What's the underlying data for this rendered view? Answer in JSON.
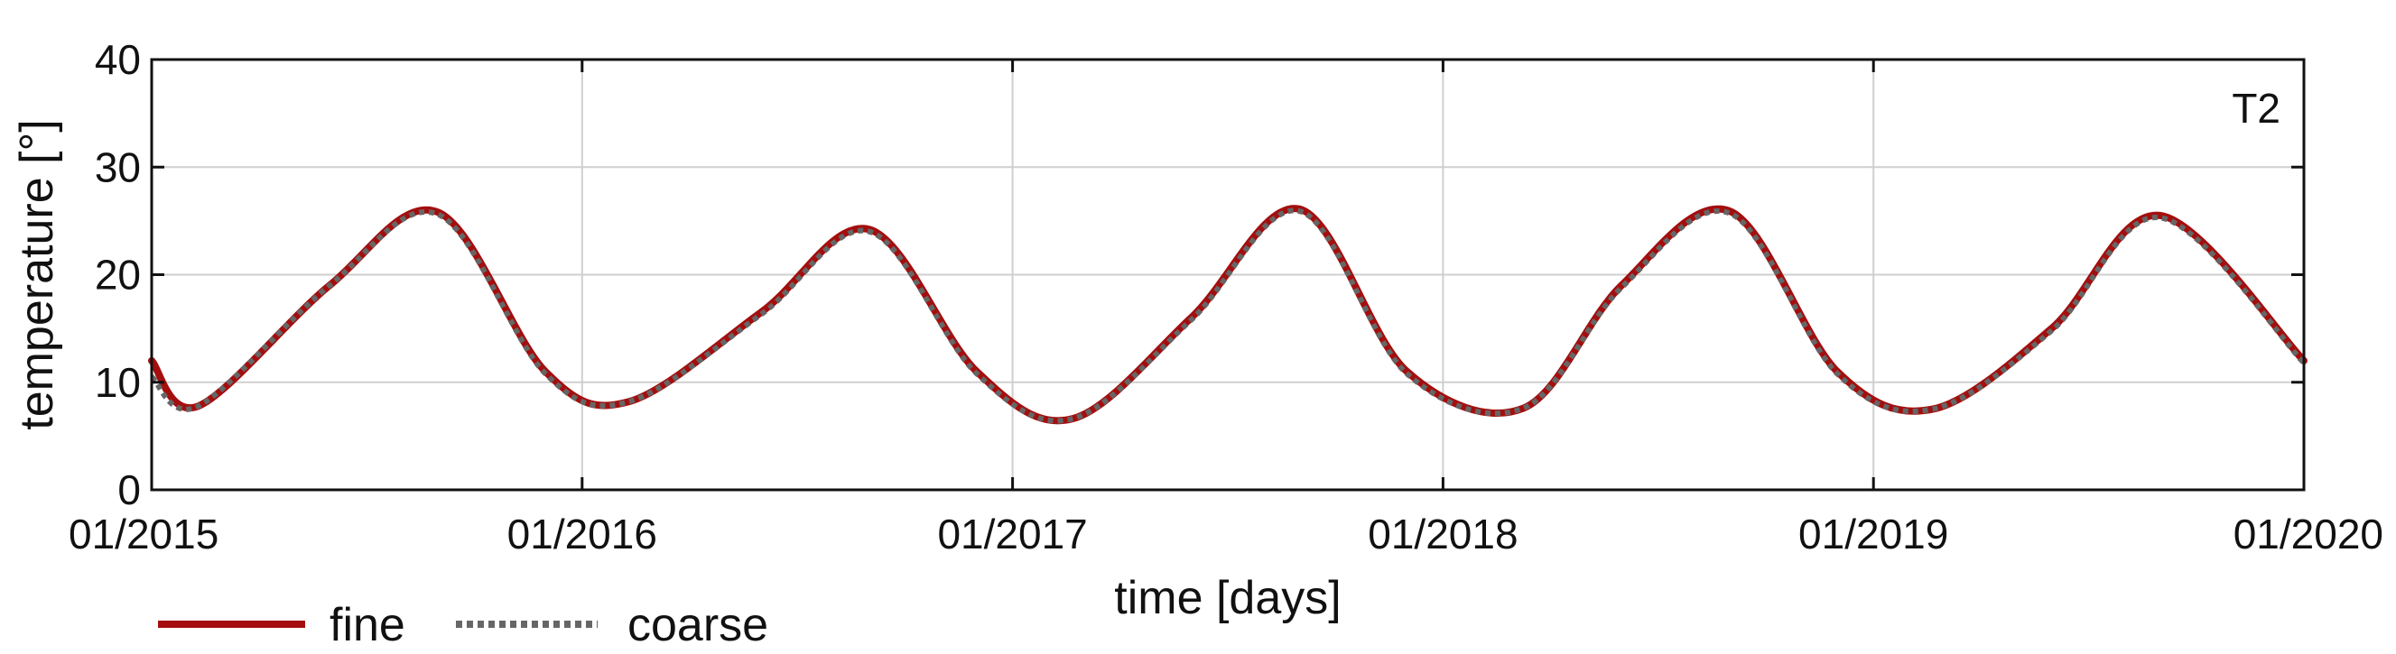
{
  "chart_data": {
    "type": "line",
    "title": "",
    "panel_label": "T2",
    "xlabel": "time [days]",
    "ylabel": "temperature [°]",
    "x_ticks": [
      "01/2015",
      "01/2016",
      "01/2017",
      "01/2018",
      "01/2019",
      "01/2020"
    ],
    "y_ticks": [
      "0",
      "10",
      "20",
      "30",
      "40"
    ],
    "xlim": [
      "2015-01-01",
      "2020-01-01"
    ],
    "ylim": [
      0,
      40
    ],
    "grid": true,
    "legend": {
      "placement": "bottom-left",
      "entries": [
        "fine",
        "coarse"
      ]
    },
    "series": [
      {
        "name": "fine",
        "color": "#a40e0e",
        "style": "solid",
        "x": [
          "2015-01-01",
          "2015-02-10",
          "2015-06-01",
          "2015-09-01",
          "2015-12-01",
          "2016-02-10",
          "2016-06-01",
          "2016-09-01",
          "2016-12-01",
          "2017-02-20",
          "2017-06-01",
          "2017-09-01",
          "2017-12-01",
          "2018-03-10",
          "2018-06-01",
          "2018-09-01",
          "2018-12-01",
          "2019-02-20",
          "2019-06-01",
          "2019-09-01",
          "2020-01-01"
        ],
        "y": [
          12,
          7.8,
          19,
          25.8,
          11,
          8.2,
          16.5,
          24.2,
          11,
          6.6,
          16,
          26.1,
          11,
          7.6,
          19,
          25.9,
          11,
          7.5,
          15,
          25.5,
          12
        ]
      },
      {
        "name": "coarse",
        "color": "#666666",
        "style": "dotted",
        "x": [
          "2015-01-01",
          "2015-02-10",
          "2015-06-01",
          "2015-09-01",
          "2015-12-01",
          "2016-02-10",
          "2016-06-01",
          "2016-09-01",
          "2016-12-01",
          "2017-02-20",
          "2017-06-01",
          "2017-09-01",
          "2017-12-01",
          "2018-03-10",
          "2018-06-01",
          "2018-09-01",
          "2018-12-01",
          "2019-02-20",
          "2019-06-01",
          "2019-09-01",
          "2020-01-01"
        ],
        "y": [
          10.5,
          7.8,
          19,
          25.6,
          10.8,
          8.2,
          16.3,
          24,
          10.8,
          6.6,
          15.8,
          25.9,
          10.8,
          7.6,
          18.8,
          25.7,
          10.8,
          7.5,
          14.8,
          25.3,
          11.8
        ]
      }
    ]
  }
}
